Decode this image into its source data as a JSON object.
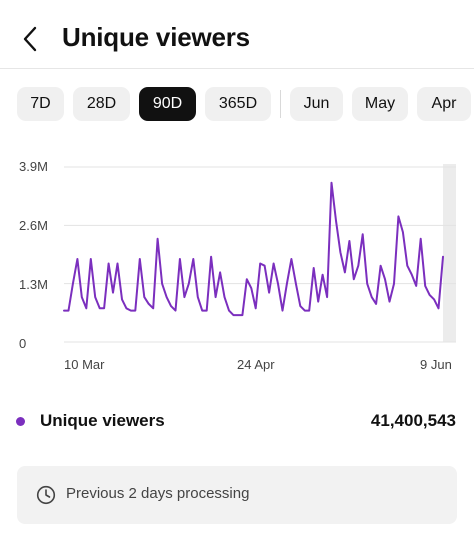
{
  "header": {
    "title": "Unique viewers"
  },
  "range_tabs": [
    {
      "label": "7D",
      "active": false
    },
    {
      "label": "28D",
      "active": false
    },
    {
      "label": "90D",
      "active": true
    },
    {
      "label": "365D",
      "active": false
    }
  ],
  "month_tabs": [
    {
      "label": "Jun",
      "active": false
    },
    {
      "label": "May",
      "active": false
    },
    {
      "label": "Apr",
      "active": false
    }
  ],
  "chart_data": {
    "type": "line",
    "title": "",
    "xlabel": "",
    "ylabel": "",
    "y_ticks": [
      "3.9M",
      "2.6M",
      "1.3M",
      "0"
    ],
    "x_ticks": [
      "10 Mar",
      "24 Apr",
      "9 Jun"
    ],
    "ylim": [
      0,
      3900000
    ],
    "color": "#7b2fbe",
    "highlight_last_days": 2,
    "series": [
      {
        "name": "Unique viewers",
        "values": [
          700000,
          700000,
          1300000,
          1850000,
          1000000,
          750000,
          1850000,
          1000000,
          750000,
          750000,
          1750000,
          1100000,
          1750000,
          950000,
          750000,
          700000,
          700000,
          1850000,
          1000000,
          850000,
          750000,
          2300000,
          1300000,
          1000000,
          800000,
          700000,
          1850000,
          1000000,
          1300000,
          1850000,
          1000000,
          700000,
          700000,
          1900000,
          1000000,
          1550000,
          1000000,
          700000,
          600000,
          600000,
          600000,
          1400000,
          1200000,
          750000,
          1750000,
          1700000,
          1100000,
          1750000,
          1300000,
          700000,
          1300000,
          1850000,
          1300000,
          800000,
          700000,
          700000,
          1650000,
          900000,
          1500000,
          1000000,
          3550000,
          2700000,
          2000000,
          1550000,
          2250000,
          1400000,
          1700000,
          2400000,
          1300000,
          1000000,
          850000,
          1700000,
          1400000,
          900000,
          1300000,
          2800000,
          2450000,
          1700000,
          1500000,
          1250000,
          2300000,
          1250000,
          1050000,
          950000,
          750000,
          1900000
        ]
      }
    ]
  },
  "legend": {
    "label": "Unique viewers",
    "value": "41,400,543",
    "color": "#7b2fbe"
  },
  "notice": {
    "text": "Previous 2 days processing",
    "icon": "clock-icon"
  }
}
